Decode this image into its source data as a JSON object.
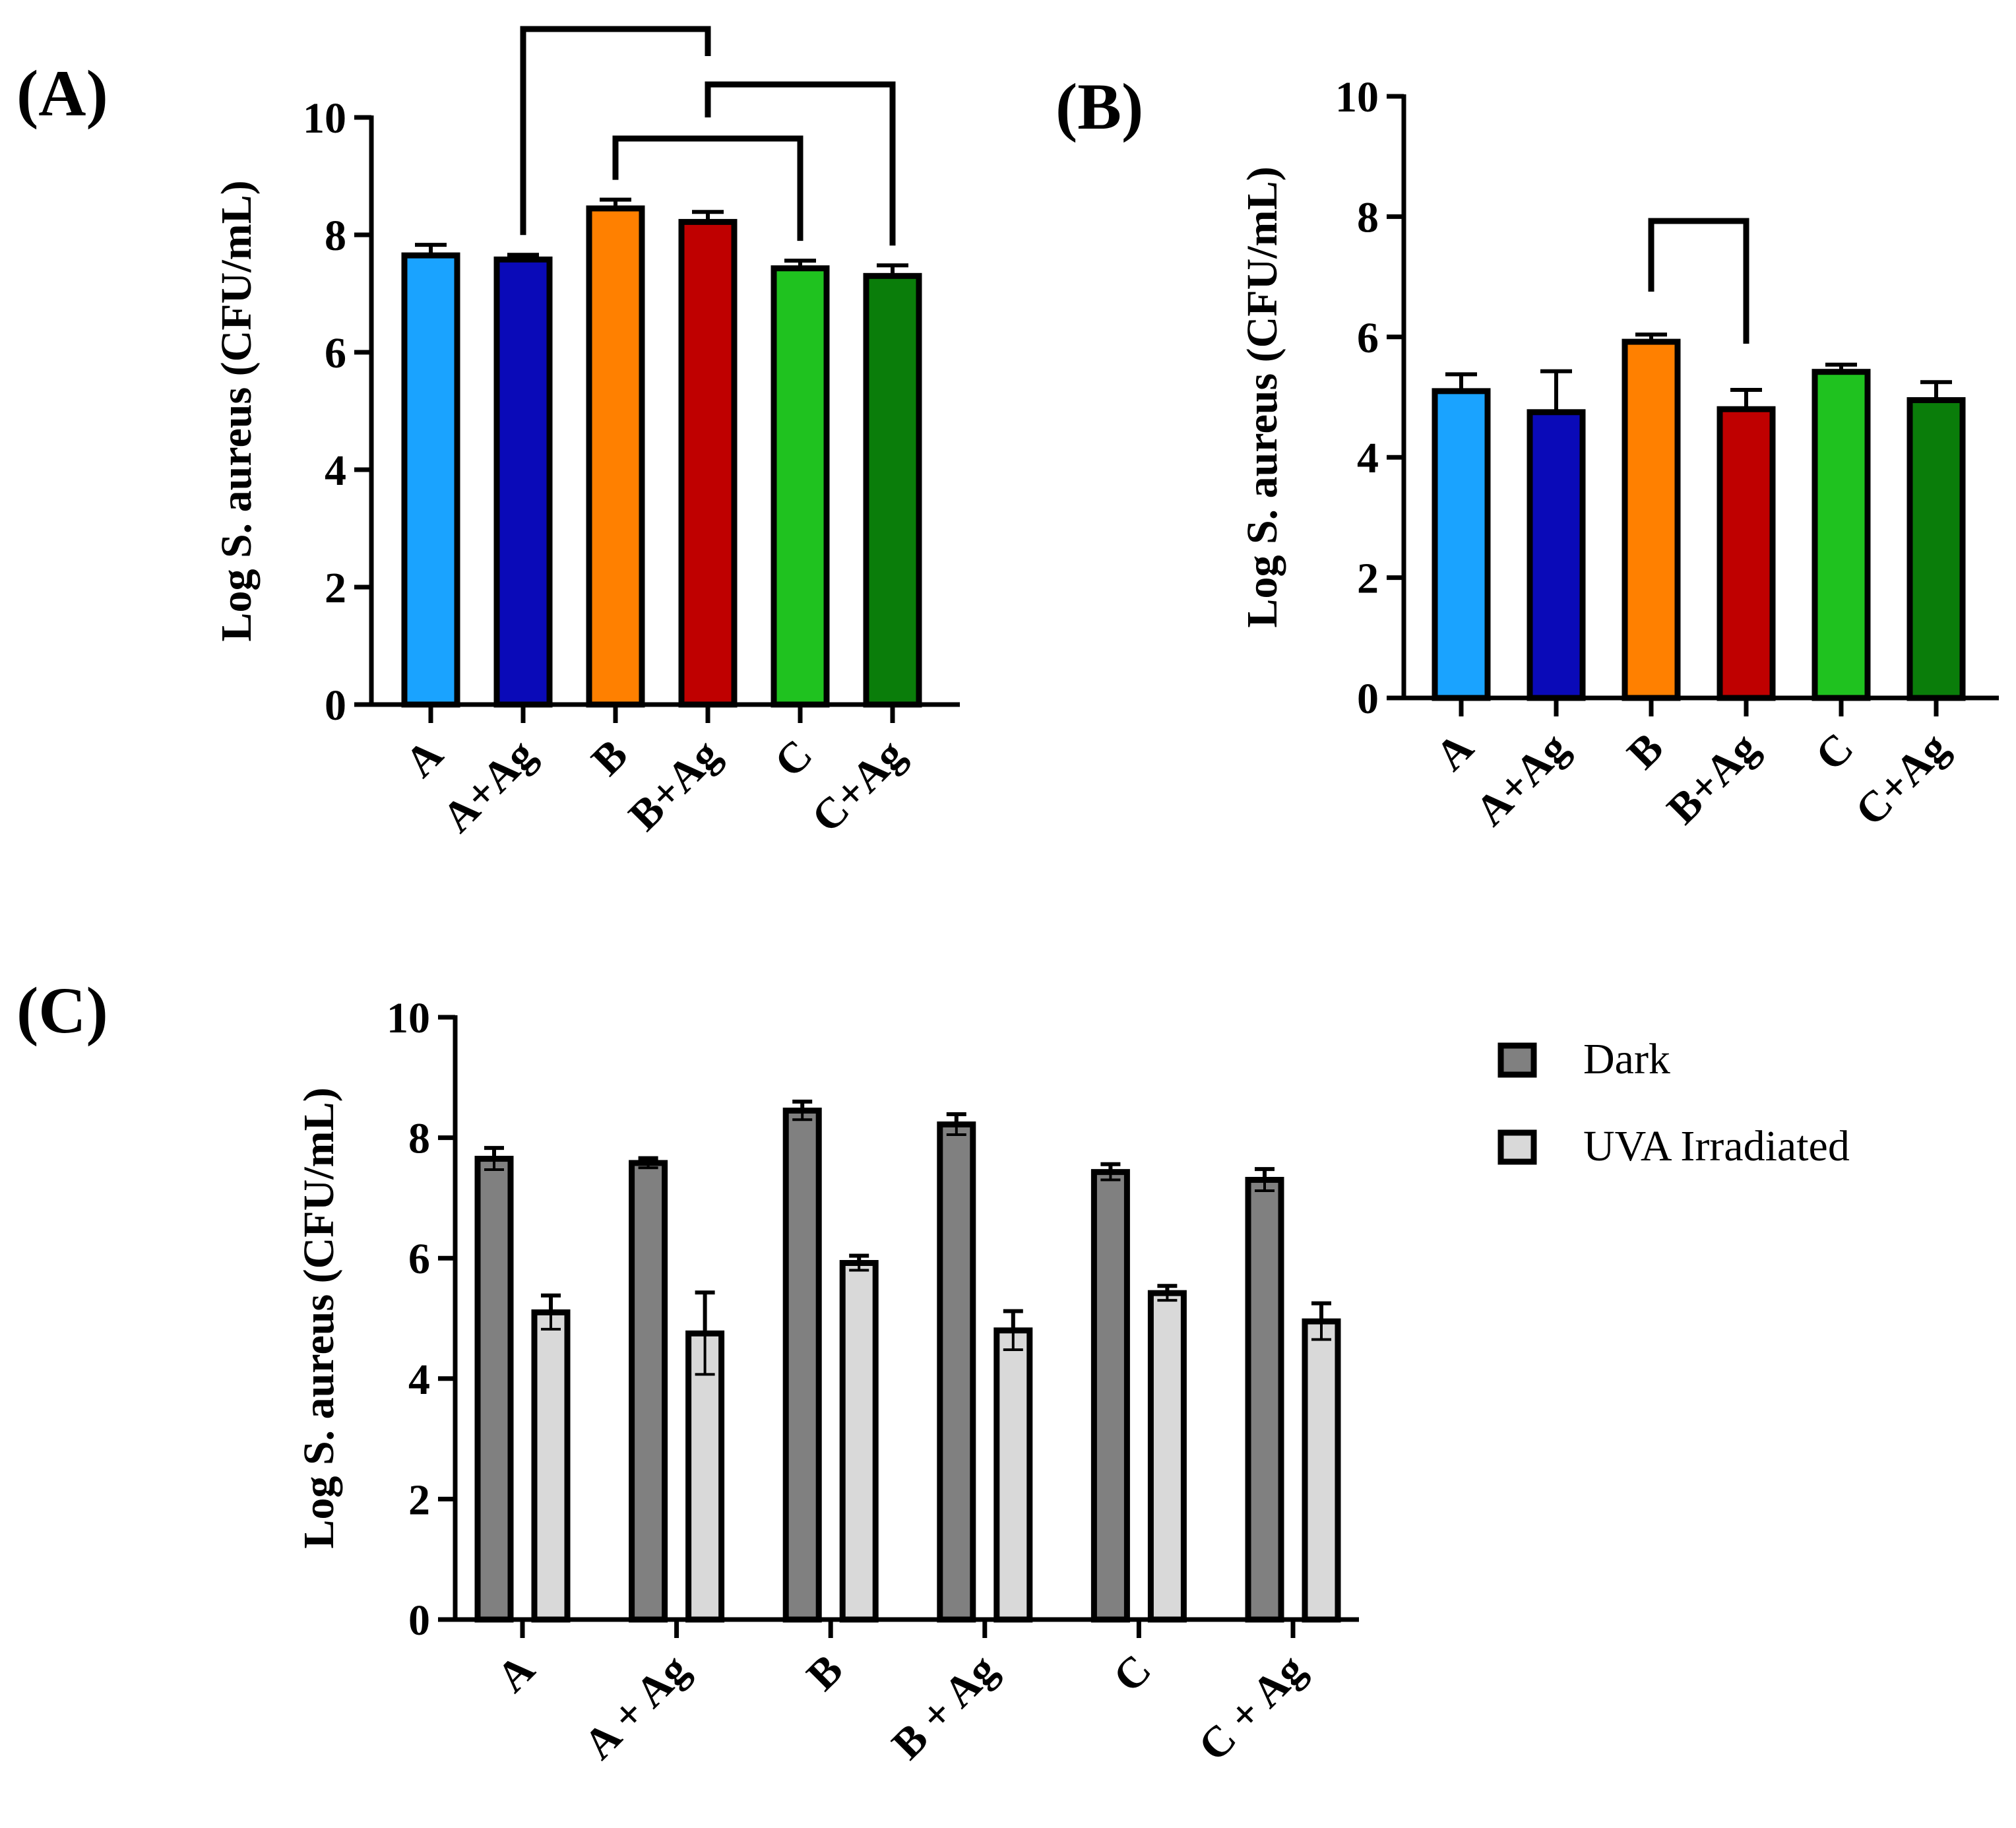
{
  "chart_data": [
    {
      "id": "A",
      "type": "bar",
      "panel_label": "(A)",
      "ylabel": "Log S.  aureus (CFU/mL)",
      "xlabel": "",
      "ylim": [
        0,
        10
      ],
      "yticks": [
        "0",
        "2",
        "4",
        "6",
        "8",
        "10"
      ],
      "categories": [
        "A",
        "A+Ag",
        "B",
        "B+Ag",
        "C",
        "C+Ag"
      ],
      "values": [
        7.65,
        7.58,
        8.45,
        8.22,
        7.43,
        7.3
      ],
      "errors": [
        0.18,
        0.08,
        0.15,
        0.17,
        0.13,
        0.18
      ],
      "colors": [
        "#1aa3ff",
        "#0a0ab8",
        "#ff8000",
        "#bf0000",
        "#1fc21f",
        "#0a7d0a"
      ],
      "comparisons": [
        {
          "from": 1,
          "to": 3,
          "level": 2
        },
        {
          "from": 3,
          "to": 5,
          "level": 1
        },
        {
          "from": 2,
          "to": 4,
          "level": 0
        }
      ]
    },
    {
      "id": "B",
      "type": "bar",
      "panel_label": "(B)",
      "ylabel": "Log S.  aureus (CFU/mL)",
      "xlabel": "",
      "ylim": [
        0,
        10
      ],
      "yticks": [
        "0",
        "2",
        "4",
        "6",
        "8",
        "10"
      ],
      "categories": [
        "A",
        "A+Ag",
        "B",
        "B+Ag",
        "C",
        "C+Ag"
      ],
      "values": [
        5.1,
        4.75,
        5.92,
        4.8,
        5.42,
        4.95
      ],
      "errors": [
        0.28,
        0.68,
        0.12,
        0.32,
        0.12,
        0.3
      ],
      "colors": [
        "#1aa3ff",
        "#0a0ab8",
        "#ff8000",
        "#bf0000",
        "#1fc21f",
        "#0a7d0a"
      ],
      "comparisons": [
        {
          "from": 2,
          "to": 3,
          "level": 0
        }
      ]
    },
    {
      "id": "C",
      "type": "bar",
      "panel_label": "(C)",
      "ylabel": "Log S.  aureus (CFU/mL)",
      "xlabel": "",
      "ylim": [
        0,
        10
      ],
      "yticks": [
        "0",
        "2",
        "4",
        "6",
        "8",
        "10"
      ],
      "categories": [
        "A",
        "A + Ag",
        "B",
        "B + Ag",
        "C",
        "C + Ag"
      ],
      "series": [
        {
          "name": "Dark",
          "color": "#808080",
          "values": [
            7.65,
            7.58,
            8.45,
            8.22,
            7.43,
            7.3
          ],
          "errors": [
            0.18,
            0.08,
            0.15,
            0.17,
            0.13,
            0.18
          ]
        },
        {
          "name": "UVA Irradiated",
          "color": "#d9d9d9",
          "values": [
            5.1,
            4.75,
            5.92,
            4.8,
            5.42,
            4.95
          ],
          "errors": [
            0.28,
            0.68,
            0.12,
            0.32,
            0.12,
            0.3
          ]
        }
      ],
      "legend": "right"
    }
  ]
}
